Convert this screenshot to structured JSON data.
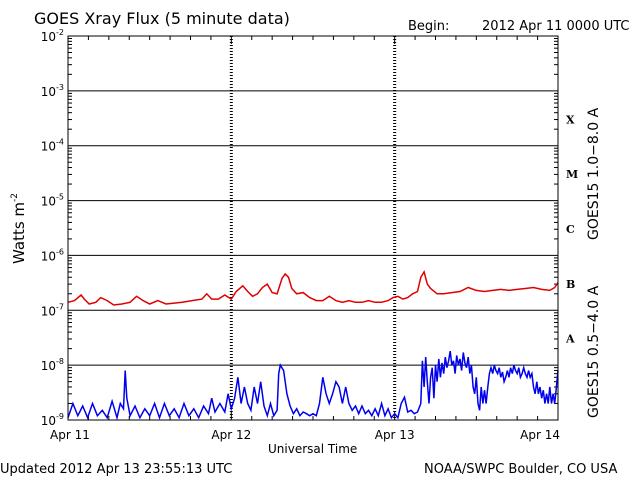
{
  "header": {
    "title": "GOES Xray Flux (5 minute data)",
    "begin_label": "Begin:",
    "begin_value": "2012 Apr 11 0000 UTC"
  },
  "footer": {
    "updated": "Updated 2012 Apr 13 23:55:13 UTC",
    "credit": "NOAA/SWPC Boulder, CO USA"
  },
  "chart_data": {
    "type": "line",
    "title": "GOES Xray Flux (5 minute data)",
    "xlabel": "Universal Time",
    "ylabel": "Watts m",
    "ylabel_sup": "-2",
    "yscale": "log",
    "ylim": [
      1e-09,
      0.01
    ],
    "x_range_days": [
      0,
      3
    ],
    "x_ticks": [
      {
        "value": 0,
        "label": "Apr 11"
      },
      {
        "value": 1,
        "label": "Apr 12"
      },
      {
        "value": 2,
        "label": "Apr 13"
      },
      {
        "value": 3,
        "label": "Apr 14"
      }
    ],
    "y_ticks": [
      {
        "exp": -9,
        "label": "10",
        "sup": "-9"
      },
      {
        "exp": -8,
        "label": "10",
        "sup": "-8"
      },
      {
        "exp": -7,
        "label": "10",
        "sup": "-7"
      },
      {
        "exp": -6,
        "label": "10",
        "sup": "-6"
      },
      {
        "exp": -5,
        "label": "10",
        "sup": "-5"
      },
      {
        "exp": -4,
        "label": "10",
        "sup": "-4"
      },
      {
        "exp": -3,
        "label": "10",
        "sup": "-3"
      },
      {
        "exp": -2,
        "label": "10",
        "sup": "-2"
      }
    ],
    "flare_classes": [
      {
        "label": "A",
        "exp": -8
      },
      {
        "label": "B",
        "exp": -7
      },
      {
        "label": "C",
        "exp": -6
      },
      {
        "label": "M",
        "exp": -5
      },
      {
        "label": "X",
        "exp": -4
      }
    ],
    "grid": "horizontal lines at each decade; dashed vertical lines at day boundaries",
    "series": [
      {
        "name": "GOES15 1.0−8.0 A",
        "color": "#e00000",
        "points": [
          [
            0.0,
            1.4e-07
          ],
          [
            0.04,
            1.5e-07
          ],
          [
            0.08,
            1.9e-07
          ],
          [
            0.1,
            1.6e-07
          ],
          [
            0.13,
            1.3e-07
          ],
          [
            0.17,
            1.4e-07
          ],
          [
            0.2,
            1.7e-07
          ],
          [
            0.24,
            1.5e-07
          ],
          [
            0.28,
            1.25e-07
          ],
          [
            0.33,
            1.3e-07
          ],
          [
            0.38,
            1.4e-07
          ],
          [
            0.42,
            1.8e-07
          ],
          [
            0.46,
            1.5e-07
          ],
          [
            0.5,
            1.3e-07
          ],
          [
            0.55,
            1.5e-07
          ],
          [
            0.6,
            1.3e-07
          ],
          [
            0.65,
            1.35e-07
          ],
          [
            0.7,
            1.4e-07
          ],
          [
            0.76,
            1.5e-07
          ],
          [
            0.82,
            1.6e-07
          ],
          [
            0.85,
            2e-07
          ],
          [
            0.88,
            1.6e-07
          ],
          [
            0.92,
            1.6e-07
          ],
          [
            0.96,
            1.9e-07
          ],
          [
            1.0,
            1.6e-07
          ],
          [
            1.03,
            2.2e-07
          ],
          [
            1.07,
            2.8e-07
          ],
          [
            1.1,
            2.2e-07
          ],
          [
            1.13,
            1.8e-07
          ],
          [
            1.16,
            2e-07
          ],
          [
            1.19,
            2.6e-07
          ],
          [
            1.22,
            3e-07
          ],
          [
            1.25,
            2.1e-07
          ],
          [
            1.28,
            2e-07
          ],
          [
            1.31,
            3.8e-07
          ],
          [
            1.33,
            4.6e-07
          ],
          [
            1.35,
            4e-07
          ],
          [
            1.37,
            2.5e-07
          ],
          [
            1.4,
            2e-07
          ],
          [
            1.44,
            2.1e-07
          ],
          [
            1.48,
            1.7e-07
          ],
          [
            1.52,
            1.5e-07
          ],
          [
            1.56,
            1.5e-07
          ],
          [
            1.6,
            1.8e-07
          ],
          [
            1.64,
            1.5e-07
          ],
          [
            1.68,
            1.4e-07
          ],
          [
            1.72,
            1.5e-07
          ],
          [
            1.76,
            1.4e-07
          ],
          [
            1.8,
            1.4e-07
          ],
          [
            1.84,
            1.5e-07
          ],
          [
            1.88,
            1.4e-07
          ],
          [
            1.92,
            1.4e-07
          ],
          [
            1.96,
            1.5e-07
          ],
          [
            1.99,
            1.7e-07
          ],
          [
            2.02,
            1.8e-07
          ],
          [
            2.05,
            1.6e-07
          ],
          [
            2.08,
            1.7e-07
          ],
          [
            2.11,
            2e-07
          ],
          [
            2.14,
            2.2e-07
          ],
          [
            2.16,
            4e-07
          ],
          [
            2.18,
            5e-07
          ],
          [
            2.2,
            3e-07
          ],
          [
            2.22,
            2.5e-07
          ],
          [
            2.26,
            2e-07
          ],
          [
            2.3,
            2e-07
          ],
          [
            2.35,
            2.1e-07
          ],
          [
            2.4,
            2.2e-07
          ],
          [
            2.45,
            2.6e-07
          ],
          [
            2.5,
            2.3e-07
          ],
          [
            2.55,
            2.2e-07
          ],
          [
            2.6,
            2.3e-07
          ],
          [
            2.65,
            2.4e-07
          ],
          [
            2.7,
            2.3e-07
          ],
          [
            2.75,
            2.4e-07
          ],
          [
            2.8,
            2.5e-07
          ],
          [
            2.85,
            2.6e-07
          ],
          [
            2.9,
            2.4e-07
          ],
          [
            2.95,
            2.3e-07
          ],
          [
            2.98,
            2.6e-07
          ],
          [
            3.0,
            3.2e-07
          ]
        ]
      },
      {
        "name": "GOES15 0.5−4.0 A",
        "color": "#0000ee",
        "points": [
          [
            0.0,
            1.1e-09
          ],
          [
            0.03,
            2e-09
          ],
          [
            0.06,
            1.2e-09
          ],
          [
            0.09,
            1.8e-09
          ],
          [
            0.12,
            1.1e-09
          ],
          [
            0.15,
            2e-09
          ],
          [
            0.18,
            1.2e-09
          ],
          [
            0.21,
            1.5e-09
          ],
          [
            0.24,
            1.1e-09
          ],
          [
            0.27,
            2.2e-09
          ],
          [
            0.3,
            1.1e-09
          ],
          [
            0.32,
            2e-09
          ],
          [
            0.34,
            1.6e-09
          ],
          [
            0.35,
            8e-09
          ],
          [
            0.36,
            2.5e-09
          ],
          [
            0.38,
            1.2e-09
          ],
          [
            0.41,
            1.8e-09
          ],
          [
            0.44,
            1.1e-09
          ],
          [
            0.47,
            1.6e-09
          ],
          [
            0.5,
            1.2e-09
          ],
          [
            0.53,
            2e-09
          ],
          [
            0.56,
            1.1e-09
          ],
          [
            0.59,
            2e-09
          ],
          [
            0.62,
            1.2e-09
          ],
          [
            0.65,
            1.6e-09
          ],
          [
            0.68,
            1.1e-09
          ],
          [
            0.71,
            2e-09
          ],
          [
            0.74,
            1.2e-09
          ],
          [
            0.77,
            1.6e-09
          ],
          [
            0.8,
            1.1e-09
          ],
          [
            0.83,
            1.8e-09
          ],
          [
            0.86,
            1.3e-09
          ],
          [
            0.88,
            2.5e-09
          ],
          [
            0.9,
            1.4e-09
          ],
          [
            0.93,
            2e-09
          ],
          [
            0.96,
            1.4e-09
          ],
          [
            0.98,
            3e-09
          ],
          [
            1.0,
            1.6e-09
          ],
          [
            1.02,
            2.5e-09
          ],
          [
            1.04,
            6e-09
          ],
          [
            1.06,
            2e-09
          ],
          [
            1.08,
            4e-09
          ],
          [
            1.1,
            2e-09
          ],
          [
            1.12,
            1.5e-09
          ],
          [
            1.14,
            4e-09
          ],
          [
            1.16,
            2e-09
          ],
          [
            1.18,
            5e-09
          ],
          [
            1.2,
            1.8e-09
          ],
          [
            1.22,
            1.2e-09
          ],
          [
            1.24,
            2e-09
          ],
          [
            1.26,
            1.2e-09
          ],
          [
            1.28,
            1.5e-09
          ],
          [
            1.29,
            7e-09
          ],
          [
            1.3,
            1e-08
          ],
          [
            1.32,
            8e-09
          ],
          [
            1.34,
            3e-09
          ],
          [
            1.36,
            1.8e-09
          ],
          [
            1.38,
            1.3e-09
          ],
          [
            1.4,
            1.6e-09
          ],
          [
            1.42,
            1.2e-09
          ],
          [
            1.44,
            1.4e-09
          ],
          [
            1.46,
            1.3e-09
          ],
          [
            1.48,
            1.2e-09
          ],
          [
            1.5,
            1.3e-09
          ],
          [
            1.52,
            1.2e-09
          ],
          [
            1.54,
            2e-09
          ],
          [
            1.56,
            6e-09
          ],
          [
            1.58,
            3e-09
          ],
          [
            1.6,
            2e-09
          ],
          [
            1.62,
            3e-09
          ],
          [
            1.64,
            5e-09
          ],
          [
            1.66,
            4e-09
          ],
          [
            1.68,
            2e-09
          ],
          [
            1.7,
            4e-09
          ],
          [
            1.72,
            2e-09
          ],
          [
            1.74,
            1.5e-09
          ],
          [
            1.76,
            1.8e-09
          ],
          [
            1.78,
            1.3e-09
          ],
          [
            1.8,
            1.8e-09
          ],
          [
            1.82,
            1.3e-09
          ],
          [
            1.84,
            1.5e-09
          ],
          [
            1.86,
            1.2e-09
          ],
          [
            1.88,
            1.6e-09
          ],
          [
            1.9,
            1.2e-09
          ],
          [
            1.92,
            2e-09
          ],
          [
            1.94,
            1.2e-09
          ],
          [
            1.96,
            1.6e-09
          ],
          [
            1.98,
            1.1e-09
          ],
          [
            2.0,
            1.3e-09
          ],
          [
            2.02,
            1.1e-09
          ],
          [
            2.04,
            2e-09
          ],
          [
            2.06,
            2.6e-09
          ],
          [
            2.08,
            1.4e-09
          ],
          [
            2.1,
            1.5e-09
          ],
          [
            2.12,
            1.3e-09
          ],
          [
            2.14,
            1.4e-09
          ],
          [
            2.16,
            2e-09
          ],
          [
            2.17,
            1.2e-08
          ],
          [
            2.18,
            4e-09
          ],
          [
            2.19,
            1.4e-08
          ],
          [
            2.2,
            5e-09
          ],
          [
            2.21,
            2e-09
          ],
          [
            2.22,
            6e-09
          ],
          [
            2.23,
            9e-09
          ],
          [
            2.24,
            2.5e-09
          ],
          [
            2.25,
            1e-08
          ],
          [
            2.26,
            5e-09
          ],
          [
            2.27,
            1.3e-08
          ],
          [
            2.28,
            6e-09
          ],
          [
            2.29,
            1.1e-08
          ],
          [
            2.3,
            7e-09
          ],
          [
            2.31,
            1.4e-08
          ],
          [
            2.32,
            9e-09
          ],
          [
            2.33,
            1.2e-08
          ],
          [
            2.34,
            1.8e-08
          ],
          [
            2.35,
            1e-08
          ],
          [
            2.36,
            1.2e-08
          ],
          [
            2.37,
            7e-09
          ],
          [
            2.38,
            1.5e-08
          ],
          [
            2.39,
            1e-08
          ],
          [
            2.4,
            1.3e-08
          ],
          [
            2.41,
            8e-09
          ],
          [
            2.42,
            1.7e-08
          ],
          [
            2.43,
            1.1e-08
          ],
          [
            2.44,
            9e-09
          ],
          [
            2.45,
            1.4e-08
          ],
          [
            2.46,
            7e-09
          ],
          [
            2.47,
            1e-08
          ],
          [
            2.48,
            4e-09
          ],
          [
            2.49,
            3e-09
          ],
          [
            2.5,
            6e-09
          ],
          [
            2.51,
            2e-09
          ],
          [
            2.52,
            1.5e-09
          ],
          [
            2.53,
            4e-09
          ],
          [
            2.54,
            2e-09
          ],
          [
            2.55,
            3.5e-09
          ],
          [
            2.56,
            2e-09
          ],
          [
            2.57,
            4e-09
          ],
          [
            2.58,
            7e-09
          ],
          [
            2.59,
            9e-09
          ],
          [
            2.6,
            7e-09
          ],
          [
            2.61,
            1e-08
          ],
          [
            2.62,
            8e-09
          ],
          [
            2.63,
            7e-09
          ],
          [
            2.64,
            9e-09
          ],
          [
            2.65,
            6e-09
          ],
          [
            2.66,
            7.5e-09
          ],
          [
            2.67,
            5e-09
          ],
          [
            2.68,
            6e-09
          ],
          [
            2.69,
            8e-09
          ],
          [
            2.7,
            6e-09
          ],
          [
            2.71,
            9e-09
          ],
          [
            2.72,
            7e-09
          ],
          [
            2.73,
            1e-08
          ],
          [
            2.74,
            8e-09
          ],
          [
            2.75,
            7e-09
          ],
          [
            2.76,
            9e-09
          ],
          [
            2.77,
            6e-09
          ],
          [
            2.78,
            7e-09
          ],
          [
            2.79,
            9e-09
          ],
          [
            2.8,
            7e-09
          ],
          [
            2.81,
            6e-09
          ],
          [
            2.82,
            8e-09
          ],
          [
            2.83,
            6e-09
          ],
          [
            2.84,
            7e-09
          ],
          [
            2.85,
            4e-09
          ],
          [
            2.86,
            3e-09
          ],
          [
            2.87,
            5e-09
          ],
          [
            2.88,
            3e-09
          ],
          [
            2.89,
            4e-09
          ],
          [
            2.9,
            2.5e-09
          ],
          [
            2.91,
            3.5e-09
          ],
          [
            2.92,
            2e-09
          ],
          [
            2.93,
            3e-09
          ],
          [
            2.94,
            2e-09
          ],
          [
            2.95,
            4e-09
          ],
          [
            2.96,
            2e-09
          ],
          [
            2.97,
            3e-09
          ],
          [
            2.98,
            2e-09
          ],
          [
            2.99,
            4e-09
          ],
          [
            3.0,
            8e-09
          ]
        ]
      }
    ]
  }
}
